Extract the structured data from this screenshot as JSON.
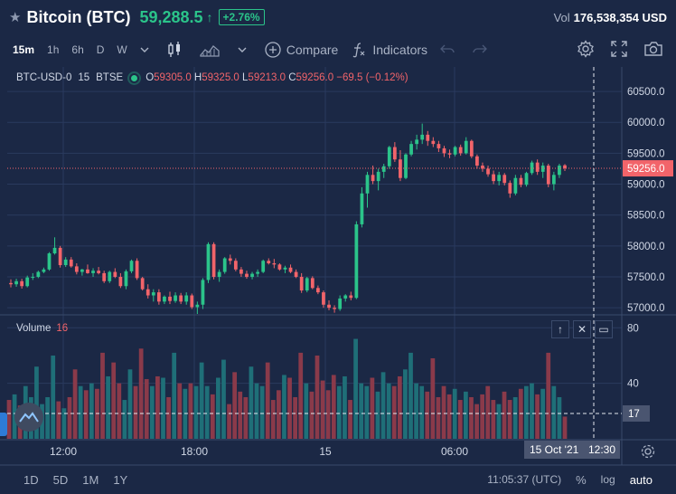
{
  "header": {
    "title": "Bitcoin (BTC)",
    "price": "59,288.5",
    "change": "+2.76%",
    "vol_label": "Vol",
    "vol_value": "176,538,354 USD"
  },
  "toolbar": {
    "timeframes": [
      "15m",
      "1h",
      "6h",
      "D",
      "W"
    ],
    "active_timeframe": "15m",
    "compare_label": "Compare",
    "indicators_label": "Indicators"
  },
  "legend": {
    "symbol": "BTC-USD-0",
    "interval": "15",
    "exchange": "BTSE",
    "open_label": "O",
    "open": "59305.0",
    "high_label": "H",
    "high": "59325.0",
    "low_label": "L",
    "low": "59213.0",
    "close_label": "C",
    "close": "59256.0",
    "change": "−69.5 (−0.12%)"
  },
  "volume_pane": {
    "label": "Volume",
    "value": "16",
    "cursor_value": "17"
  },
  "chart_data": {
    "type": "candlestick",
    "y_ticks": [
      57000,
      57500,
      58000,
      58500,
      59000,
      59500,
      60000,
      60500
    ],
    "ylim": [
      56900,
      60750
    ],
    "last_price_label": "59256.0",
    "last_price": 59256,
    "volume_ticks": [
      40,
      80
    ],
    "volume_ylim": [
      0,
      88
    ],
    "x_ticks": [
      "12:00",
      "18:00",
      "15",
      "06:00"
    ],
    "crosshair_date": "15 Oct '21",
    "crosshair_time": "12:30",
    "candles": [
      [
        57400,
        57460,
        57330,
        57380
      ],
      [
        57380,
        57470,
        57340,
        57430
      ],
      [
        57430,
        57470,
        57310,
        57350
      ],
      [
        57350,
        57520,
        57330,
        57490
      ],
      [
        57490,
        57560,
        57450,
        57500
      ],
      [
        57500,
        57600,
        57480,
        57580
      ],
      [
        57580,
        57650,
        57560,
        57620
      ],
      [
        57620,
        57900,
        57600,
        57880
      ],
      [
        57880,
        58140,
        57860,
        57970
      ],
      [
        57970,
        58000,
        57650,
        57690
      ],
      [
        57690,
        57820,
        57660,
        57780
      ],
      [
        57780,
        57820,
        57650,
        57670
      ],
      [
        57670,
        57720,
        57540,
        57580
      ],
      [
        57580,
        57630,
        57520,
        57620
      ],
      [
        57620,
        57700,
        57550,
        57560
      ],
      [
        57560,
        57640,
        57500,
        57600
      ],
      [
        57600,
        57660,
        57540,
        57560
      ],
      [
        57560,
        57600,
        57400,
        57430
      ],
      [
        57430,
        57600,
        57400,
        57580
      ],
      [
        57580,
        57640,
        57480,
        57500
      ],
      [
        57500,
        57560,
        57320,
        57350
      ],
      [
        57350,
        57620,
        57300,
        57590
      ],
      [
        57590,
        57780,
        57560,
        57760
      ],
      [
        57760,
        57800,
        57450,
        57480
      ],
      [
        57480,
        57500,
        57280,
        57300
      ],
      [
        57300,
        57380,
        57150,
        57200
      ],
      [
        57200,
        57300,
        57100,
        57250
      ],
      [
        57250,
        57300,
        57050,
        57100
      ],
      [
        57100,
        57200,
        57060,
        57180
      ],
      [
        57180,
        57260,
        57060,
        57110
      ],
      [
        57110,
        57250,
        57080,
        57200
      ],
      [
        57200,
        57240,
        57060,
        57100
      ],
      [
        57100,
        57250,
        57050,
        57200
      ],
      [
        57200,
        57230,
        56980,
        57010
      ],
      [
        57010,
        57100,
        56900,
        57050
      ],
      [
        57050,
        57480,
        56980,
        57450
      ],
      [
        57450,
        58060,
        57400,
        58030
      ],
      [
        58030,
        58060,
        57460,
        57500
      ],
      [
        57500,
        57620,
        57420,
        57580
      ],
      [
        57580,
        57820,
        57550,
        57800
      ],
      [
        57800,
        57860,
        57700,
        57760
      ],
      [
        57760,
        57800,
        57590,
        57620
      ],
      [
        57620,
        57660,
        57500,
        57550
      ],
      [
        57550,
        57600,
        57470,
        57500
      ],
      [
        57500,
        57580,
        57460,
        57550
      ],
      [
        57550,
        57620,
        57500,
        57580
      ],
      [
        57580,
        57780,
        57560,
        57760
      ],
      [
        57760,
        57800,
        57700,
        57720
      ],
      [
        57720,
        57790,
        57640,
        57700
      ],
      [
        57700,
        57720,
        57600,
        57620
      ],
      [
        57620,
        57680,
        57560,
        57650
      ],
      [
        57650,
        57700,
        57560,
        57580
      ],
      [
        57580,
        57620,
        57480,
        57500
      ],
      [
        57500,
        57560,
        57240,
        57280
      ],
      [
        57280,
        57500,
        57250,
        57480
      ],
      [
        57480,
        57510,
        57300,
        57320
      ],
      [
        57320,
        57360,
        57220,
        57250
      ],
      [
        57250,
        57280,
        57000,
        57050
      ],
      [
        57050,
        57120,
        56960,
        57000
      ],
      [
        57000,
        57040,
        56920,
        56980
      ],
      [
        56980,
        57200,
        56950,
        57150
      ],
      [
        57150,
        57220,
        57100,
        57200
      ],
      [
        57200,
        57260,
        57120,
        57160
      ],
      [
        57160,
        58400,
        57140,
        58350
      ],
      [
        58350,
        58950,
        58300,
        58850
      ],
      [
        58850,
        59200,
        58620,
        59150
      ],
      [
        59150,
        59300,
        59000,
        59050
      ],
      [
        59050,
        59250,
        58900,
        59200
      ],
      [
        59200,
        59330,
        59100,
        59290
      ],
      [
        59290,
        59620,
        59250,
        59600
      ],
      [
        59600,
        59680,
        59360,
        59400
      ],
      [
        59400,
        59550,
        59050,
        59100
      ],
      [
        59100,
        59500,
        59080,
        59480
      ],
      [
        59480,
        59700,
        59450,
        59650
      ],
      [
        59650,
        59800,
        59560,
        59720
      ],
      [
        59720,
        59980,
        59650,
        59800
      ],
      [
        59800,
        59860,
        59620,
        59700
      ],
      [
        59700,
        59760,
        59600,
        59650
      ],
      [
        59650,
        59700,
        59520,
        59580
      ],
      [
        59580,
        59620,
        59440,
        59500
      ],
      [
        59500,
        59560,
        59420,
        59480
      ],
      [
        59480,
        59620,
        59450,
        59600
      ],
      [
        59600,
        59640,
        59460,
        59500
      ],
      [
        59500,
        59760,
        59480,
        59700
      ],
      [
        59700,
        59720,
        59420,
        59450
      ],
      [
        59450,
        59480,
        59250,
        59300
      ],
      [
        59300,
        59350,
        59200,
        59250
      ],
      [
        59250,
        59300,
        59120,
        59160
      ],
      [
        59160,
        59220,
        59000,
        59050
      ],
      [
        59050,
        59200,
        58980,
        59150
      ],
      [
        59150,
        59180,
        58980,
        59020
      ],
      [
        59020,
        59060,
        58780,
        58850
      ],
      [
        58850,
        59150,
        58820,
        59100
      ],
      [
        59100,
        59150,
        58950,
        58990
      ],
      [
        58990,
        59200,
        58960,
        59180
      ],
      [
        59180,
        59380,
        59150,
        59350
      ],
      [
        59350,
        59400,
        59150,
        59200
      ],
      [
        59200,
        59350,
        59100,
        59300
      ],
      [
        59300,
        59330,
        58950,
        59000
      ],
      [
        59000,
        59200,
        58900,
        59150
      ],
      [
        59150,
        59330,
        59100,
        59300
      ],
      [
        59305,
        59325,
        59213,
        59256
      ]
    ],
    "volumes": [
      28,
      32,
      24,
      38,
      30,
      52,
      25,
      30,
      60,
      27,
      22,
      30,
      50,
      38,
      35,
      40,
      36,
      62,
      45,
      55,
      40,
      28,
      50,
      38,
      65,
      43,
      38,
      45,
      44,
      30,
      62,
      40,
      36,
      40,
      38,
      55,
      38,
      32,
      44,
      57,
      25,
      48,
      34,
      30,
      52,
      40,
      38,
      55,
      28,
      35,
      46,
      44,
      30,
      62,
      40,
      34,
      60,
      42,
      35,
      46,
      38,
      45,
      28,
      72,
      40,
      38,
      44,
      34,
      48,
      40,
      38,
      45,
      50,
      62,
      40,
      38,
      34,
      58,
      30,
      38,
      32,
      36,
      28,
      34,
      30,
      25,
      32,
      38,
      28,
      25,
      34,
      28,
      30,
      36,
      38,
      40,
      32,
      36,
      62,
      38,
      30,
      16
    ]
  }
}
